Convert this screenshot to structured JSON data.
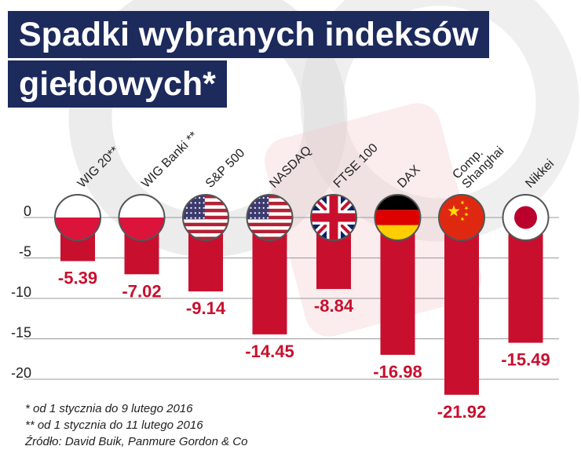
{
  "title": {
    "line1": "Spadki wybranych indeksów",
    "line2": "giełdowych*"
  },
  "chart_data": {
    "type": "bar",
    "title": "Spadki wybranych indeksów giełdowych*",
    "categories": [
      "WIG 20**",
      "WIG Banki **",
      "S&P 500",
      "NASDAQ",
      "FTSE 100",
      "DAX",
      "Comp. Shanghai",
      "Nikkei"
    ],
    "category_lines": [
      [
        "WIG 20**"
      ],
      [
        "WIG Banki **"
      ],
      [
        "S&P 500"
      ],
      [
        "NASDAQ"
      ],
      [
        "FTSE 100"
      ],
      [
        "DAX"
      ],
      [
        "Comp.",
        "Shanghai"
      ],
      [
        "Nikkei"
      ]
    ],
    "values": [
      -5.39,
      -7.02,
      -9.14,
      -14.45,
      -8.84,
      -16.98,
      -21.92,
      -15.49
    ],
    "value_labels": [
      "-5.39",
      "-7.02",
      "-9.14",
      "-14.45",
      "-8.84",
      "-16.98",
      "-21.92",
      "-15.49"
    ],
    "flags": [
      "poland",
      "poland",
      "usa",
      "usa",
      "uk",
      "germany",
      "china",
      "japan"
    ],
    "ylim": [
      -22,
      0
    ],
    "yticks": [
      0,
      -5,
      -10,
      -15,
      -20
    ],
    "ytick_labels": [
      "0",
      "-5",
      "-10",
      "-15",
      "-20"
    ],
    "grid": true,
    "legend": "none",
    "xlabel": "",
    "ylabel": ""
  },
  "notes": {
    "note1": "* od 1 stycznia do 9 lutego 2016",
    "note2": "** od 1 stycznia do 11 lutego 2016",
    "source": "Źródło: David Buik, Panmure Gordon & Co"
  },
  "colors": {
    "bar": "#c8102e",
    "label": "#c8102e",
    "title_bg": "#1c2a5c",
    "grid": "#999999",
    "watermark": "#dcdcdc"
  }
}
